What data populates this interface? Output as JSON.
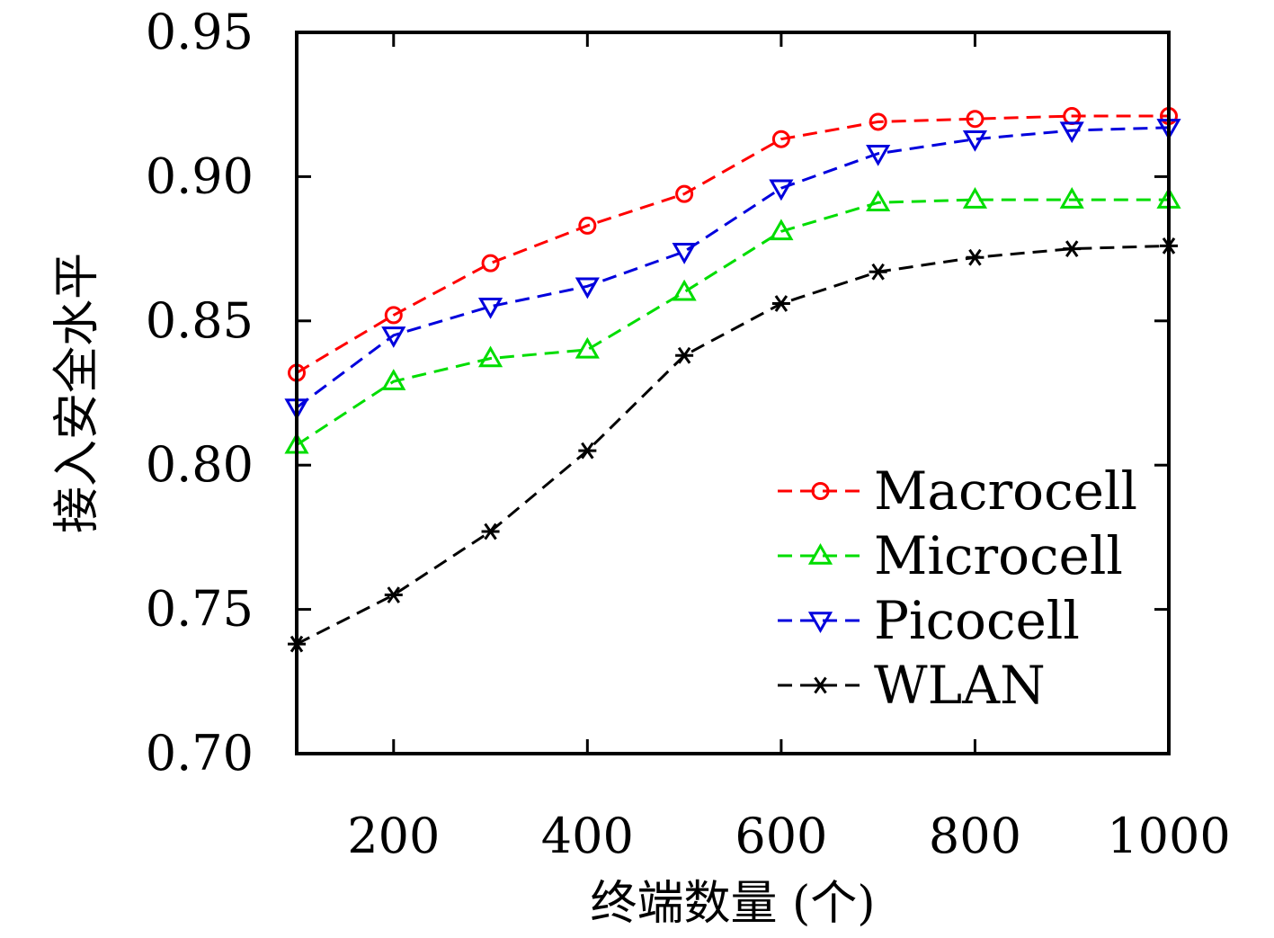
{
  "chart_data": {
    "type": "line",
    "title": "",
    "xlabel": "终端数量 (个)",
    "ylabel": "接入安全水平",
    "x": [
      100,
      200,
      300,
      400,
      500,
      600,
      700,
      800,
      900,
      1000
    ],
    "xlim": [
      100,
      1000
    ],
    "ylim": [
      0.7,
      0.95
    ],
    "xticks": [
      200,
      400,
      600,
      800,
      1000
    ],
    "xtick_labels": [
      "200",
      "400",
      "600",
      "800",
      "1000"
    ],
    "yticks": [
      0.7,
      0.75,
      0.8,
      0.85,
      0.9,
      0.95
    ],
    "ytick_labels": [
      "0.70",
      "0.75",
      "0.80",
      "0.85",
      "0.90",
      "0.95"
    ],
    "grid": false,
    "legend_position": "bottom-right",
    "series": [
      {
        "name": "Macrocell",
        "color": "#ff0000",
        "marker": "circle",
        "values": [
          0.832,
          0.852,
          0.87,
          0.883,
          0.894,
          0.913,
          0.919,
          0.92,
          0.921,
          0.921
        ]
      },
      {
        "name": "Microcell",
        "color": "#00dd00",
        "marker": "triangle-up",
        "values": [
          0.807,
          0.829,
          0.837,
          0.84,
          0.86,
          0.881,
          0.891,
          0.892,
          0.892,
          0.892
        ]
      },
      {
        "name": "Picocell",
        "color": "#0000dd",
        "marker": "triangle-down",
        "values": [
          0.82,
          0.845,
          0.855,
          0.862,
          0.874,
          0.896,
          0.908,
          0.913,
          0.916,
          0.917
        ]
      },
      {
        "name": "WLAN",
        "color": "#000000",
        "marker": "asterisk",
        "values": [
          0.738,
          0.755,
          0.777,
          0.805,
          0.838,
          0.856,
          0.867,
          0.872,
          0.875,
          0.876
        ]
      }
    ]
  }
}
